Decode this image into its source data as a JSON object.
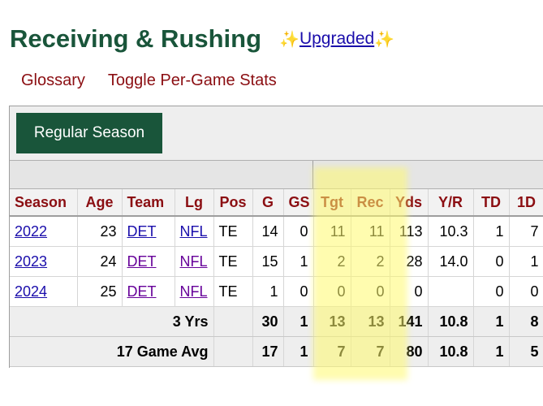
{
  "header": {
    "title": "Receiving & Rushing",
    "sparkle_left": "✨",
    "upgraded_label": "Upgraded",
    "sparkle_right": "✨"
  },
  "nav": {
    "glossary": "Glossary",
    "toggle": "Toggle Per-Game Stats"
  },
  "filter": {
    "regular_season": "Regular Season"
  },
  "table": {
    "columns": [
      "Season",
      "Age",
      "Team",
      "Lg",
      "Pos",
      "G",
      "GS",
      "Tgt",
      "Rec",
      "Yds",
      "Y/R",
      "TD",
      "1D"
    ],
    "rows": [
      {
        "season": "2022",
        "age": "23",
        "team": "DET",
        "lg": "NFL",
        "pos": "TE",
        "g": "14",
        "gs": "0",
        "tgt": "11",
        "rec": "11",
        "yds": "113",
        "yr": "10.3",
        "td": "1",
        "fd": "7"
      },
      {
        "season": "2023",
        "age": "24",
        "team": "DET",
        "lg": "NFL",
        "pos": "TE",
        "g": "15",
        "gs": "1",
        "tgt": "2",
        "rec": "2",
        "yds": "28",
        "yr": "14.0",
        "td": "0",
        "fd": "1"
      },
      {
        "season": "2024",
        "age": "25",
        "team": "DET",
        "lg": "NFL",
        "pos": "TE",
        "g": "1",
        "gs": "0",
        "tgt": "0",
        "rec": "0",
        "yds": "0",
        "yr": "",
        "td": "0",
        "fd": "0"
      }
    ],
    "summary": [
      {
        "label": "3 Yrs",
        "g": "30",
        "gs": "1",
        "tgt": "13",
        "rec": "13",
        "yds": "141",
        "yr": "10.8",
        "td": "1",
        "fd": "8"
      },
      {
        "label": "17 Game Avg",
        "g": "17",
        "gs": "1",
        "tgt": "7",
        "rec": "7",
        "yds": "80",
        "yr": "10.8",
        "td": "1",
        "fd": "5"
      }
    ]
  },
  "colors": {
    "brand_green": "#19553a",
    "header_red": "#8b0e12",
    "link_blue": "#1a0dab",
    "link_visited": "#660099",
    "highlight_yellow": "#fff96e"
  }
}
